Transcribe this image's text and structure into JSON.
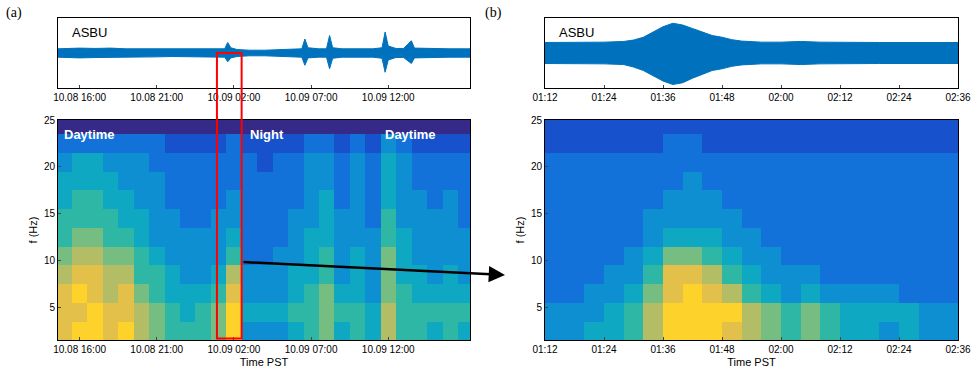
{
  "chart_data": [
    {
      "type": "line",
      "panel_label": "(a)",
      "annotations": [
        "ASBU"
      ],
      "color": "#0072bd",
      "x": [
        14.6,
        15,
        16,
        17,
        18,
        19,
        20,
        21,
        22,
        23,
        24,
        25,
        25.4,
        25.6,
        25.8,
        26.2,
        27,
        28,
        29,
        30,
        30.4,
        30.6,
        30.8,
        31.5,
        32,
        32.2,
        32.4,
        33,
        34,
        35,
        35.6,
        35.8,
        36,
        36.5,
        37,
        37.5,
        37.7,
        38.5,
        39,
        40,
        41,
        41.3
      ],
      "upper": [
        0.12,
        0.13,
        0.14,
        0.13,
        0.14,
        0.12,
        0.12,
        0.11,
        0.1,
        0.1,
        0.1,
        0.1,
        0.12,
        0.3,
        0.15,
        0.1,
        0.08,
        0.08,
        0.09,
        0.1,
        0.12,
        0.4,
        0.15,
        0.12,
        0.12,
        0.5,
        0.15,
        0.12,
        0.12,
        0.12,
        0.15,
        0.6,
        0.2,
        0.13,
        0.13,
        0.35,
        0.14,
        0.13,
        0.12,
        0.12,
        0.12,
        0.12
      ],
      "lower": [
        -0.12,
        -0.13,
        -0.14,
        -0.13,
        -0.13,
        -0.12,
        -0.12,
        -0.11,
        -0.1,
        -0.1,
        -0.1,
        -0.1,
        -0.12,
        -0.25,
        -0.14,
        -0.1,
        -0.08,
        -0.08,
        -0.09,
        -0.1,
        -0.12,
        -0.35,
        -0.14,
        -0.12,
        -0.12,
        -0.45,
        -0.15,
        -0.12,
        -0.12,
        -0.12,
        -0.15,
        -0.55,
        -0.2,
        -0.13,
        -0.13,
        -0.3,
        -0.14,
        -0.13,
        -0.12,
        -0.12,
        -0.12,
        -0.12
      ],
      "xlim": [
        14.6,
        41.3
      ],
      "xticks": [
        {
          "value": 16,
          "label": "10.08 16:00"
        },
        {
          "value": 21,
          "label": "10.08 21:00"
        },
        {
          "value": 26,
          "label": "10.09 02:00"
        },
        {
          "value": 31,
          "label": "10.09 07:00"
        },
        {
          "value": 36,
          "label": "10.09 12:00"
        }
      ],
      "ylim": [
        -1,
        1
      ],
      "tick_labels": "x",
      "highlight": {
        "x": [
          24.9,
          26.5
        ],
        "color": "#ff0000"
      }
    },
    {
      "type": "heatmap",
      "annotations": [
        "Daytime",
        "Night",
        "Daytime"
      ],
      "x_label": "Time PST",
      "y_label": "f (Hz)",
      "x_edges": [
        14.5,
        15.5,
        16.5,
        17.5,
        18.5,
        19.5,
        20.5,
        21.5,
        22.5,
        23.5,
        24.5,
        25.5,
        26.5,
        27.5,
        28.5,
        29.5,
        30.5,
        31.5,
        32.5,
        33.5,
        34.5,
        35.5,
        36.5,
        37.5,
        38.5,
        39.5,
        40.5,
        41.5
      ],
      "y_edges": [
        1.5,
        3.5,
        5.5,
        7.5,
        9.5,
        11.5,
        13.5,
        15.5,
        17.5,
        19.5,
        21.5,
        23.5,
        25.5
      ],
      "z": [
        [
          8,
          9,
          9,
          8,
          9,
          7,
          6,
          5,
          5,
          5,
          6,
          9,
          3,
          3,
          3,
          4,
          5,
          6,
          4,
          5,
          4,
          7,
          5,
          5,
          4,
          5,
          4
        ],
        [
          8,
          8,
          9,
          8,
          8,
          7,
          6,
          5,
          4,
          5,
          6,
          9,
          4,
          4,
          4,
          5,
          5,
          6,
          5,
          5,
          4,
          7,
          5,
          5,
          5,
          5,
          5
        ],
        [
          8,
          9,
          8,
          7,
          8,
          6,
          5,
          4,
          4,
          4,
          5,
          8,
          3,
          3,
          3,
          4,
          5,
          6,
          4,
          4,
          3,
          6,
          5,
          4,
          4,
          4,
          4
        ],
        [
          7,
          8,
          8,
          7,
          7,
          5,
          5,
          4,
          3,
          3,
          4,
          7,
          3,
          3,
          3,
          4,
          4,
          5,
          3,
          4,
          3,
          6,
          4,
          4,
          3,
          4,
          3
        ],
        [
          6,
          7,
          7,
          6,
          6,
          5,
          4,
          3,
          3,
          3,
          3,
          5,
          2,
          2,
          3,
          3,
          4,
          5,
          3,
          4,
          3,
          6,
          4,
          3,
          3,
          3,
          3
        ],
        [
          5,
          6,
          6,
          5,
          5,
          4,
          3,
          3,
          3,
          3,
          3,
          4,
          2,
          2,
          2,
          3,
          4,
          4,
          3,
          3,
          3,
          5,
          4,
          3,
          3,
          3,
          3
        ],
        [
          5,
          5,
          5,
          5,
          4,
          4,
          3,
          3,
          2,
          2,
          3,
          3,
          2,
          2,
          2,
          3,
          3,
          4,
          3,
          3,
          2,
          5,
          3,
          3,
          3,
          3,
          2
        ],
        [
          4,
          5,
          5,
          4,
          4,
          3,
          3,
          2,
          2,
          2,
          2,
          3,
          2,
          2,
          2,
          2,
          3,
          4,
          2,
          3,
          2,
          4,
          3,
          3,
          2,
          3,
          2
        ],
        [
          4,
          4,
          4,
          4,
          3,
          3,
          3,
          2,
          2,
          2,
          2,
          2,
          2,
          2,
          2,
          2,
          3,
          3,
          2,
          3,
          2,
          4,
          3,
          2,
          2,
          2,
          2
        ],
        [
          3,
          4,
          4,
          3,
          3,
          3,
          2,
          2,
          2,
          2,
          2,
          2,
          2,
          1,
          2,
          2,
          3,
          3,
          2,
          3,
          2,
          4,
          3,
          2,
          2,
          2,
          2
        ],
        [
          2,
          2,
          2,
          2,
          2,
          2,
          2,
          1,
          1,
          1,
          1,
          2,
          1,
          1,
          1,
          1,
          2,
          2,
          1,
          2,
          1,
          3,
          2,
          1,
          1,
          1,
          1
        ],
        [
          0,
          0,
          0,
          0,
          0,
          0,
          0,
          0,
          0,
          0,
          0,
          0,
          0,
          0,
          0,
          0,
          0,
          0,
          0,
          0,
          0,
          0,
          0,
          0,
          0,
          0,
          0
        ]
      ],
      "zlim": [
        0,
        10
      ],
      "xlim": [
        14.6,
        41.3
      ],
      "xticks": [
        {
          "value": 16,
          "label": "10.08 16:00"
        },
        {
          "value": 21,
          "label": "10.08 21:00"
        },
        {
          "value": 26,
          "label": "10.09 02:00"
        },
        {
          "value": 31,
          "label": "10.09 07:00"
        },
        {
          "value": 36,
          "label": "10.09 12:00"
        }
      ],
      "ylim": [
        1.5,
        25
      ],
      "yticks": [
        5,
        10,
        15,
        20,
        25
      ]
    },
    {
      "type": "line",
      "panel_label": "(b)",
      "annotations": [
        "ASBU"
      ],
      "color": "#0072bd",
      "x": [
        72,
        76,
        80,
        84,
        88,
        90,
        92,
        94,
        96,
        98,
        100,
        102,
        104,
        106,
        108,
        110,
        112,
        116,
        120,
        124,
        128,
        132,
        136,
        140,
        144,
        148,
        152,
        156
      ],
      "upper": [
        0.3,
        0.3,
        0.3,
        0.31,
        0.33,
        0.37,
        0.45,
        0.6,
        0.75,
        0.85,
        0.8,
        0.7,
        0.6,
        0.5,
        0.45,
        0.38,
        0.34,
        0.31,
        0.31,
        0.33,
        0.31,
        0.3,
        0.3,
        0.3,
        0.3,
        0.3,
        0.3,
        0.3
      ],
      "lower": [
        -0.3,
        -0.3,
        -0.3,
        -0.31,
        -0.33,
        -0.4,
        -0.5,
        -0.65,
        -0.8,
        -0.9,
        -0.85,
        -0.72,
        -0.6,
        -0.5,
        -0.45,
        -0.38,
        -0.34,
        -0.31,
        -0.31,
        -0.33,
        -0.31,
        -0.3,
        -0.3,
        -0.3,
        -0.3,
        -0.3,
        -0.3,
        -0.3
      ],
      "xlim": [
        72,
        156
      ],
      "xticks": [
        {
          "value": 72,
          "label": "01:12"
        },
        {
          "value": 84,
          "label": "01:24"
        },
        {
          "value": 96,
          "label": "01:36"
        },
        {
          "value": 108,
          "label": "01:48"
        },
        {
          "value": 120,
          "label": "02:00"
        },
        {
          "value": 132,
          "label": "02:12"
        },
        {
          "value": 144,
          "label": "02:24"
        },
        {
          "value": 156,
          "label": "02:36"
        }
      ],
      "ylim": [
        -1,
        1
      ],
      "tick_labels": "x"
    },
    {
      "type": "heatmap",
      "x_label": "Time PST",
      "y_label": "f (Hz)",
      "x_edges": [
        72,
        76,
        80,
        84,
        88,
        92,
        96,
        100,
        104,
        108,
        112,
        116,
        120,
        124,
        128,
        132,
        136,
        140,
        144,
        148,
        152,
        156
      ],
      "y_edges": [
        1.5,
        3.5,
        5.5,
        7.5,
        9.5,
        11.5,
        13.5,
        15.5,
        17.5,
        19.5,
        21.5,
        23.5,
        25.5
      ],
      "z": [
        [
          3,
          3,
          4,
          4,
          5,
          7,
          9,
          9,
          9,
          8,
          7,
          6,
          5,
          6,
          5,
          4,
          4,
          3,
          4,
          3,
          3
        ],
        [
          3,
          3,
          3,
          4,
          5,
          7,
          9,
          9,
          9,
          9,
          7,
          6,
          5,
          6,
          5,
          4,
          4,
          4,
          4,
          3,
          3
        ],
        [
          2,
          2,
          3,
          3,
          4,
          6,
          8,
          9,
          8,
          7,
          5,
          4,
          3,
          4,
          3,
          3,
          3,
          3,
          2,
          2,
          2
        ],
        [
          2,
          2,
          2,
          3,
          3,
          5,
          8,
          8,
          7,
          5,
          4,
          3,
          3,
          3,
          2,
          2,
          2,
          2,
          2,
          2,
          2
        ],
        [
          2,
          2,
          2,
          2,
          3,
          4,
          6,
          6,
          5,
          4,
          3,
          3,
          2,
          2,
          2,
          2,
          2,
          2,
          2,
          2,
          2
        ],
        [
          2,
          2,
          2,
          2,
          2,
          3,
          4,
          4,
          4,
          3,
          3,
          2,
          2,
          2,
          2,
          2,
          2,
          2,
          2,
          2,
          2
        ],
        [
          2,
          2,
          2,
          2,
          2,
          3,
          3,
          3,
          3,
          3,
          2,
          2,
          2,
          2,
          2,
          2,
          2,
          2,
          2,
          2,
          2
        ],
        [
          2,
          2,
          2,
          2,
          2,
          2,
          3,
          3,
          3,
          2,
          2,
          2,
          2,
          2,
          2,
          2,
          2,
          2,
          2,
          2,
          2
        ],
        [
          2,
          2,
          2,
          2,
          2,
          2,
          2,
          3,
          2,
          2,
          2,
          2,
          2,
          2,
          2,
          2,
          2,
          2,
          2,
          2,
          2
        ],
        [
          2,
          2,
          2,
          2,
          2,
          2,
          2,
          2,
          2,
          2,
          2,
          2,
          2,
          2,
          2,
          2,
          2,
          2,
          2,
          2,
          2
        ],
        [
          1,
          1,
          1,
          1,
          1,
          1,
          2,
          2,
          1,
          1,
          1,
          1,
          1,
          1,
          1,
          1,
          1,
          1,
          1,
          1,
          1
        ],
        [
          1,
          1,
          1,
          1,
          1,
          1,
          1,
          1,
          1,
          1,
          1,
          1,
          1,
          1,
          1,
          1,
          1,
          1,
          1,
          1,
          1
        ]
      ],
      "zlim": [
        0,
        10
      ],
      "xlim": [
        72,
        156
      ],
      "xticks": [
        {
          "value": 72,
          "label": "01:12"
        },
        {
          "value": 84,
          "label": "01:24"
        },
        {
          "value": 96,
          "label": "01:36"
        },
        {
          "value": 108,
          "label": "01:48"
        },
        {
          "value": 120,
          "label": "02:00"
        },
        {
          "value": 132,
          "label": "02:12"
        },
        {
          "value": 144,
          "label": "02:24"
        },
        {
          "value": 156,
          "label": "02:36"
        }
      ],
      "ylim": [
        1.5,
        25
      ],
      "yticks": [
        5,
        10,
        15,
        20,
        25
      ]
    }
  ]
}
